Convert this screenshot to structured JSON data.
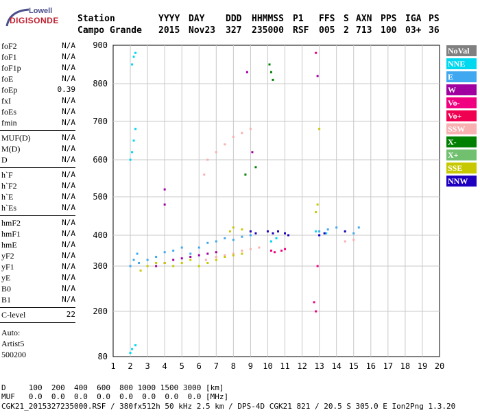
{
  "logo": {
    "line1": "Lowell",
    "line2": "DIGISONDE"
  },
  "header": {
    "row1": [
      "Station",
      "YYYY",
      "DAY",
      "DDD",
      "HHMMSS",
      "P1",
      "FFS",
      "S",
      "AXN",
      "PPS",
      "IGA",
      "PS"
    ],
    "row2": [
      "Campo Grande",
      "2015",
      "Nov23",
      "327",
      "235000",
      "RSF",
      "005",
      "2",
      "713",
      "100",
      "03+",
      "36"
    ]
  },
  "parameters": {
    "group1": [
      {
        "label": "foF2",
        "value": "N/A"
      },
      {
        "label": "foF1",
        "value": "N/A"
      },
      {
        "label": "foF1p",
        "value": "N/A"
      },
      {
        "label": "foE",
        "value": "N/A"
      },
      {
        "label": "foEp",
        "value": "0.39"
      },
      {
        "label": "fxI",
        "value": "N/A"
      },
      {
        "label": "foEs",
        "value": "N/A"
      },
      {
        "label": "fmin",
        "value": "N/A"
      }
    ],
    "group2": [
      {
        "label": "MUF(D)",
        "value": "N/A"
      },
      {
        "label": "M(D)",
        "value": "N/A"
      },
      {
        "label": "D",
        "value": "N/A"
      }
    ],
    "group3": [
      {
        "label": "h`F",
        "value": "N/A"
      },
      {
        "label": "h`F2",
        "value": "N/A"
      },
      {
        "label": "h`E",
        "value": "N/A"
      },
      {
        "label": "h`Es",
        "value": "N/A"
      }
    ],
    "group4": [
      {
        "label": "hmF2",
        "value": "N/A"
      },
      {
        "label": "hmF1",
        "value": "N/A"
      },
      {
        "label": "hmE",
        "value": "N/A"
      },
      {
        "label": "yF2",
        "value": "N/A"
      },
      {
        "label": "yF1",
        "value": "N/A"
      },
      {
        "label": "yE",
        "value": "N/A"
      },
      {
        "label": "B0",
        "value": "N/A"
      },
      {
        "label": "B1",
        "value": "N/A"
      }
    ],
    "group5": [
      {
        "label": "C-level",
        "value": "22"
      }
    ],
    "auto_lines": [
      "Auto:",
      "Artist5",
      "500200"
    ]
  },
  "legend": [
    {
      "label": "NoVal",
      "color": "#808080"
    },
    {
      "label": "NNE",
      "color": "#00d8f0"
    },
    {
      "label": "E",
      "color": "#40a8f0"
    },
    {
      "label": "W",
      "color": "#a000a0"
    },
    {
      "label": "Vo-",
      "color": "#f00080"
    },
    {
      "label": "Vo+",
      "color": "#f00050"
    },
    {
      "label": "SSW",
      "color": "#f8b0b0"
    },
    {
      "label": "X-",
      "color": "#008000"
    },
    {
      "label": "X+",
      "color": "#70c070"
    },
    {
      "label": "SSE",
      "color": "#c8c800"
    },
    {
      "label": "NNW",
      "color": "#2000c0"
    }
  ],
  "footer": {
    "d_row": "D     100  200  400  600  800 1000 1500 3000 [km]",
    "muf_row": "MUF   0.0  0.0  0.0  0.0  0.0  0.0  0.0  0.0 [MHz]",
    "info_row": "CGK21_2015327235000.RSF / 380fx512h 50 kHz 2.5 km / DPS-4D CGK21 821 / 20.5 S 305.0 E Ion2Png 1.3.20"
  },
  "chart_data": {
    "type": "scatter",
    "title": "",
    "xlabel": "",
    "ylabel": "",
    "xlim": [
      1,
      20
    ],
    "ylim": [
      80,
      900
    ],
    "x_ticks": [
      1,
      2,
      3,
      4,
      5,
      6,
      7,
      8,
      9,
      10,
      11,
      12,
      13,
      14,
      15,
      16,
      17,
      18,
      19,
      20
    ],
    "y_ticks": [
      80,
      200,
      300,
      400,
      500,
      600,
      700,
      800,
      900
    ],
    "grid": true,
    "series": [
      {
        "name": "NNE",
        "color": "#00d8f0",
        "points": [
          [
            2.0,
            600
          ],
          [
            2.1,
            620
          ],
          [
            2.2,
            650
          ],
          [
            2.3,
            680
          ],
          [
            2.1,
            850
          ],
          [
            2.2,
            870
          ],
          [
            2.3,
            880
          ],
          [
            2.0,
            90
          ],
          [
            2.1,
            100
          ],
          [
            2.3,
            110
          ],
          [
            12.8,
            410
          ],
          [
            13.0,
            400
          ],
          [
            13.4,
            405
          ],
          [
            10.2,
            380
          ],
          [
            10.5,
            390
          ]
        ]
      },
      {
        "name": "E",
        "color": "#40a8f0",
        "points": [
          [
            2.0,
            300
          ],
          [
            2.2,
            320
          ],
          [
            2.4,
            340
          ],
          [
            2.5,
            310
          ],
          [
            3.0,
            320
          ],
          [
            3.5,
            330
          ],
          [
            4.0,
            345
          ],
          [
            4.5,
            350
          ],
          [
            5.0,
            360
          ],
          [
            5.5,
            340
          ],
          [
            6.0,
            360
          ],
          [
            6.5,
            375
          ],
          [
            7.0,
            380
          ],
          [
            7.5,
            390
          ],
          [
            8.0,
            385
          ],
          [
            8.5,
            395
          ],
          [
            9.0,
            400
          ],
          [
            13.0,
            410
          ],
          [
            13.5,
            415
          ],
          [
            14.0,
            420
          ],
          [
            14.5,
            410
          ],
          [
            15.0,
            405
          ],
          [
            15.3,
            420
          ]
        ]
      },
      {
        "name": "W",
        "color": "#a000a0",
        "points": [
          [
            3.5,
            300
          ],
          [
            4.0,
            310
          ],
          [
            4.5,
            320
          ],
          [
            5.0,
            325
          ],
          [
            5.5,
            330
          ],
          [
            6.0,
            335
          ],
          [
            6.5,
            340
          ],
          [
            7.0,
            345
          ],
          [
            4.0,
            520
          ],
          [
            4.0,
            480
          ],
          [
            8.8,
            830
          ],
          [
            9.1,
            620
          ],
          [
            12.9,
            820
          ]
        ]
      },
      {
        "name": "SSW",
        "color": "#f8b0b0",
        "points": [
          [
            6.4,
            320
          ],
          [
            7.0,
            330
          ],
          [
            7.5,
            335
          ],
          [
            8.0,
            340
          ],
          [
            8.5,
            350
          ],
          [
            9.0,
            355
          ],
          [
            9.5,
            360
          ],
          [
            6.3,
            560
          ],
          [
            6.5,
            600
          ],
          [
            7.0,
            620
          ],
          [
            7.5,
            640
          ],
          [
            8.0,
            660
          ],
          [
            8.5,
            670
          ],
          [
            9.0,
            680
          ],
          [
            14.5,
            380
          ],
          [
            15.0,
            385
          ]
        ]
      },
      {
        "name": "SSE",
        "color": "#c8c800",
        "points": [
          [
            2.6,
            290
          ],
          [
            3.0,
            300
          ],
          [
            3.5,
            310
          ],
          [
            4.0,
            310
          ],
          [
            4.5,
            300
          ],
          [
            5.0,
            310
          ],
          [
            5.5,
            320
          ],
          [
            6.0,
            300
          ],
          [
            6.5,
            310
          ],
          [
            7.0,
            320
          ],
          [
            7.5,
            330
          ],
          [
            8.0,
            335
          ],
          [
            8.5,
            340
          ],
          [
            7.8,
            410
          ],
          [
            8.0,
            420
          ],
          [
            8.5,
            415
          ],
          [
            9.0,
            410
          ],
          [
            12.8,
            460
          ],
          [
            12.9,
            480
          ],
          [
            13.0,
            680
          ]
        ]
      },
      {
        "name": "NNW",
        "color": "#2000c0",
        "points": [
          [
            10.0,
            410
          ],
          [
            10.3,
            405
          ],
          [
            10.6,
            410
          ],
          [
            11.0,
            405
          ],
          [
            11.2,
            400
          ],
          [
            9.0,
            410
          ],
          [
            9.3,
            405
          ],
          [
            13.0,
            400
          ],
          [
            13.3,
            405
          ],
          [
            14.5,
            410
          ]
        ]
      },
      {
        "name": "X-",
        "color": "#008000",
        "points": [
          [
            10.1,
            850
          ],
          [
            10.2,
            830
          ],
          [
            10.3,
            810
          ],
          [
            9.3,
            580
          ],
          [
            8.7,
            560
          ]
        ]
      },
      {
        "name": "Vo-",
        "color": "#f00080",
        "points": [
          [
            10.2,
            350
          ],
          [
            10.4,
            345
          ],
          [
            10.8,
            350
          ],
          [
            11.0,
            355
          ],
          [
            12.8,
            200
          ],
          [
            12.7,
            220
          ],
          [
            12.9,
            300
          ],
          [
            12.8,
            880
          ]
        ]
      }
    ]
  }
}
